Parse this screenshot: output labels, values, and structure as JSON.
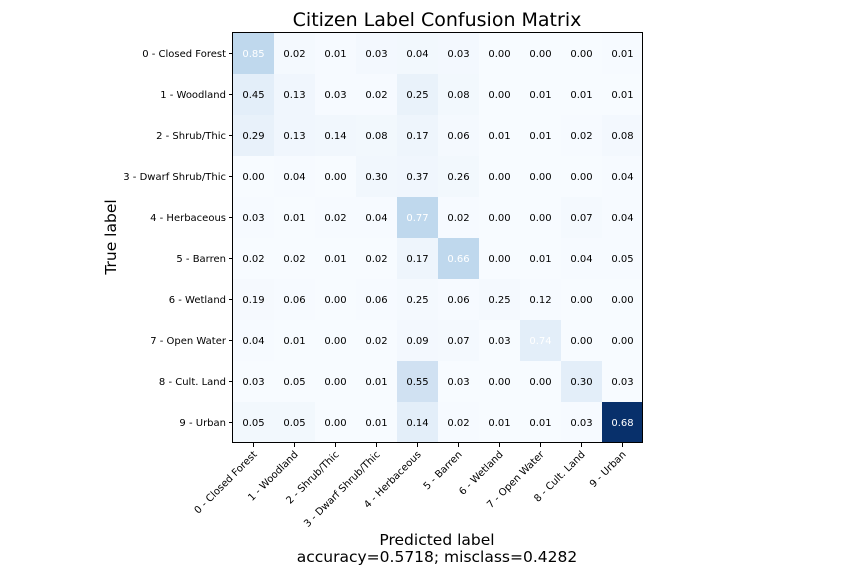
{
  "chart_data": {
    "type": "heatmap",
    "title": "Citizen Label Confusion Matrix",
    "xlabel": "Predicted label",
    "xlabel_sub": "accuracy=0.5718; misclass=0.4282",
    "ylabel": "True label",
    "colormap": "Blues",
    "x_categories": [
      "0 - Closed Forest",
      "1 - Woodland",
      "2 - Shrub/Thic",
      "3 - Dwarf Shrub/Thic",
      "4 - Herbaceous",
      "5 - Barren",
      "6 - Wetland",
      "7 - Open Water",
      "8 - Cult. Land",
      "9 - Urban"
    ],
    "y_categories": [
      "0 - Closed Forest",
      "1 - Woodland",
      "2 - Shrub/Thic",
      "3 - Dwarf Shrub/Thic",
      "4 - Herbaceous",
      "5 - Barren",
      "6 - Wetland",
      "7 - Open Water",
      "8 - Cult. Land",
      "9 - Urban"
    ],
    "values": [
      [
        "0.85",
        "0.02",
        "0.01",
        "0.03",
        "0.04",
        "0.03",
        "0.00",
        "0.00",
        "0.00",
        "0.01"
      ],
      [
        "0.45",
        "0.13",
        "0.03",
        "0.02",
        "0.25",
        "0.08",
        "0.00",
        "0.01",
        "0.01",
        "0.01"
      ],
      [
        "0.29",
        "0.13",
        "0.14",
        "0.08",
        "0.17",
        "0.06",
        "0.01",
        "0.01",
        "0.02",
        "0.08"
      ],
      [
        "0.00",
        "0.04",
        "0.00",
        "0.30",
        "0.37",
        "0.26",
        "0.00",
        "0.00",
        "0.00",
        "0.04"
      ],
      [
        "0.03",
        "0.01",
        "0.02",
        "0.04",
        "0.77",
        "0.02",
        "0.00",
        "0.00",
        "0.07",
        "0.04"
      ],
      [
        "0.02",
        "0.02",
        "0.01",
        "0.02",
        "0.17",
        "0.66",
        "0.00",
        "0.01",
        "0.04",
        "0.05"
      ],
      [
        "0.19",
        "0.06",
        "0.00",
        "0.06",
        "0.25",
        "0.06",
        "0.25",
        "0.12",
        "0.00",
        "0.00"
      ],
      [
        "0.04",
        "0.01",
        "0.00",
        "0.02",
        "0.09",
        "0.07",
        "0.03",
        "0.74",
        "0.00",
        "0.00"
      ],
      [
        "0.03",
        "0.05",
        "0.00",
        "0.01",
        "0.55",
        "0.03",
        "0.00",
        "0.00",
        "0.30",
        "0.03"
      ],
      [
        "0.05",
        "0.05",
        "0.00",
        "0.01",
        "0.14",
        "0.02",
        "0.01",
        "0.01",
        "0.03",
        "0.68"
      ]
    ],
    "cell_colors": [
      [
        "#bfd8ed",
        "#f4f9fe",
        "#f6faff",
        "#f3f8fe",
        "#f2f8fd",
        "#f3f8fe",
        "#f7fbff",
        "#f7fbff",
        "#f7fbff",
        "#f6faff"
      ],
      [
        "#e3eef9",
        "#f0f6fd",
        "#f6faff",
        "#f6faff",
        "#e9f2fa",
        "#f2f8fd",
        "#f7fbff",
        "#f7fbff",
        "#f7fbff",
        "#f7fbff"
      ],
      [
        "#e8f1fa",
        "#f0f6fd",
        "#f1f7fd",
        "#f2f8fd",
        "#eef5fc",
        "#f4f9fe",
        "#f7fbff",
        "#f7fbff",
        "#f6faff",
        "#f3f8fe"
      ],
      [
        "#f7fbff",
        "#f6faff",
        "#f7fbff",
        "#f1f7fd",
        "#f0f6fd",
        "#f2f8fd",
        "#f7fbff",
        "#f7fbff",
        "#f7fbff",
        "#f6faff"
      ],
      [
        "#f6faff",
        "#f7fbff",
        "#f6faff",
        "#f6faff",
        "#bfd8ed",
        "#f6faff",
        "#f7fbff",
        "#f7fbff",
        "#f4f9fe",
        "#f6faff"
      ],
      [
        "#f7fbff",
        "#f7fbff",
        "#f7fbff",
        "#f7fbff",
        "#eef5fc",
        "#bfd8ed",
        "#f7fbff",
        "#f7fbff",
        "#f6faff",
        "#f6faff"
      ],
      [
        "#f5f9fe",
        "#f6faff",
        "#f7fbff",
        "#f6faff",
        "#f4f9fe",
        "#f6faff",
        "#f4f9fe",
        "#f6faff",
        "#f7fbff",
        "#f7fbff"
      ],
      [
        "#f6faff",
        "#f7fbff",
        "#f7fbff",
        "#f7fbff",
        "#f3f8fe",
        "#f4f9fe",
        "#f7fbff",
        "#e3eef9",
        "#f7fbff",
        "#f7fbff"
      ],
      [
        "#f7fbff",
        "#f7fbff",
        "#f7fbff",
        "#f7fbff",
        "#d0e1f2",
        "#f7fbff",
        "#f7fbff",
        "#f7fbff",
        "#e3eef9",
        "#f7fbff"
      ],
      [
        "#f2f8fd",
        "#f2f8fd",
        "#f7fbff",
        "#f7fbff",
        "#e3eef9",
        "#f6faff",
        "#f7fbff",
        "#f7fbff",
        "#f6faff",
        "#08306b"
      ]
    ],
    "light_text_cells": [
      [
        0,
        0
      ],
      [
        4,
        4
      ],
      [
        5,
        5
      ],
      [
        7,
        7
      ],
      [
        9,
        9
      ]
    ],
    "text_color_dark": "#000000",
    "text_color_light": "#ffffff",
    "grid": false
  }
}
